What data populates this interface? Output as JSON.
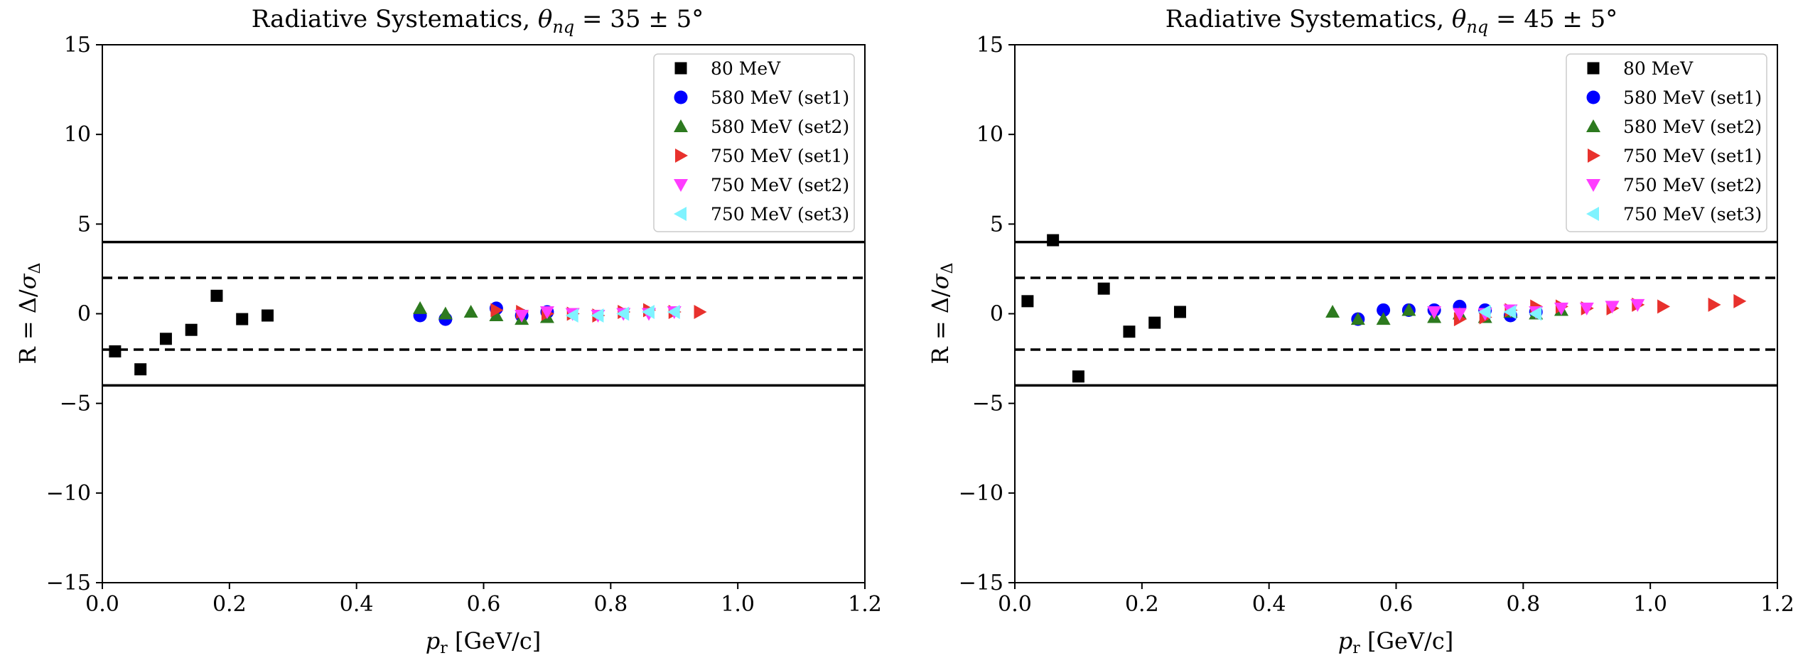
{
  "chart_data": [
    {
      "type": "scatter",
      "title": "Radiative Systematics, θnq = 35 ± 5°",
      "xlabel": "pr [GeV/c]",
      "ylabel": "R = Δ/σΔ",
      "xlim": [
        0.0,
        1.2
      ],
      "ylim": [
        -15,
        15
      ],
      "xticks": [
        "0.0",
        "0.2",
        "0.4",
        "0.6",
        "0.8",
        "1.0",
        "1.2"
      ],
      "yticks": [
        "−15",
        "−10",
        "−5",
        "0",
        "5",
        "10",
        "15"
      ],
      "grid": false,
      "legend_position": "top-right",
      "hlines": [
        {
          "y": 4,
          "style": "solid"
        },
        {
          "y": -4,
          "style": "solid"
        },
        {
          "y": 2,
          "style": "dashed"
        },
        {
          "y": -2,
          "style": "dashed"
        }
      ],
      "series": [
        {
          "name": "80 MeV",
          "marker": "square",
          "color": "#000000",
          "x": [
            0.02,
            0.06,
            0.1,
            0.14,
            0.18,
            0.22,
            0.26
          ],
          "y": [
            -2.1,
            -3.1,
            -1.4,
            -0.9,
            1.0,
            -0.3,
            -0.1
          ]
        },
        {
          "name": "580 MeV (set1)",
          "marker": "circle",
          "color": "#0000ff",
          "x": [
            0.5,
            0.54,
            0.62,
            0.66,
            0.7
          ],
          "y": [
            -0.1,
            -0.3,
            0.3,
            -0.1,
            0.1
          ]
        },
        {
          "name": "580 MeV (set2)",
          "marker": "triangle-up",
          "color": "#2d7a1f",
          "x": [
            0.5,
            0.54,
            0.58,
            0.62,
            0.66,
            0.7
          ],
          "y": [
            0.3,
            0.0,
            0.1,
            -0.1,
            -0.3,
            -0.2
          ]
        },
        {
          "name": "750 MeV (set1)",
          "marker": "triangle-right",
          "color": "#e8312d",
          "x": [
            0.62,
            0.66,
            0.7,
            0.74,
            0.78,
            0.82,
            0.86,
            0.9,
            0.94
          ],
          "y": [
            0.2,
            0.1,
            0.0,
            0.0,
            -0.1,
            0.1,
            0.2,
            0.1,
            0.1
          ]
        },
        {
          "name": "750 MeV (set2)",
          "marker": "triangle-down",
          "color": "#ff3cff",
          "x": [
            0.66,
            0.7,
            0.74,
            0.78,
            0.82,
            0.86,
            0.9
          ],
          "y": [
            -0.1,
            0.1,
            0.0,
            -0.1,
            0.0,
            0.0,
            0.1
          ]
        },
        {
          "name": "750 MeV (set3)",
          "marker": "triangle-left",
          "color": "#7ff3ff",
          "x": [
            0.74,
            0.78,
            0.82,
            0.86,
            0.9
          ],
          "y": [
            -0.1,
            -0.1,
            0.0,
            0.1,
            0.1
          ]
        }
      ]
    },
    {
      "type": "scatter",
      "title": "Radiative Systematics, θnq = 45 ± 5°",
      "xlabel": "pr [GeV/c]",
      "ylabel": "R = Δ/σΔ",
      "xlim": [
        0.0,
        1.2
      ],
      "ylim": [
        -15,
        15
      ],
      "xticks": [
        "0.0",
        "0.2",
        "0.4",
        "0.6",
        "0.8",
        "1.0",
        "1.2"
      ],
      "yticks": [
        "−15",
        "−10",
        "−5",
        "0",
        "5",
        "10",
        "15"
      ],
      "grid": false,
      "legend_position": "top-right",
      "hlines": [
        {
          "y": 4,
          "style": "solid"
        },
        {
          "y": -4,
          "style": "solid"
        },
        {
          "y": 2,
          "style": "dashed"
        },
        {
          "y": -2,
          "style": "dashed"
        }
      ],
      "series": [
        {
          "name": "80 MeV",
          "marker": "square",
          "color": "#000000",
          "x": [
            0.02,
            0.06,
            0.1,
            0.14,
            0.18,
            0.22,
            0.26
          ],
          "y": [
            0.7,
            4.1,
            -3.5,
            1.4,
            -1.0,
            -0.5,
            0.1
          ]
        },
        {
          "name": "580 MeV (set1)",
          "marker": "circle",
          "color": "#0000ff",
          "x": [
            0.54,
            0.58,
            0.62,
            0.66,
            0.7,
            0.74,
            0.78,
            0.82
          ],
          "y": [
            -0.3,
            0.2,
            0.2,
            0.2,
            0.4,
            0.2,
            -0.1,
            0.1
          ]
        },
        {
          "name": "580 MeV (set2)",
          "marker": "triangle-up",
          "color": "#2d7a1f",
          "x": [
            0.5,
            0.54,
            0.58,
            0.62,
            0.66,
            0.7,
            0.74,
            0.78,
            0.82,
            0.86
          ],
          "y": [
            0.1,
            -0.3,
            -0.3,
            0.2,
            -0.2,
            0.0,
            -0.2,
            0.1,
            0.0,
            0.2
          ]
        },
        {
          "name": "750 MeV (set1)",
          "marker": "triangle-right",
          "color": "#e8312d",
          "x": [
            0.7,
            0.74,
            0.78,
            0.82,
            0.86,
            0.9,
            0.94,
            0.98,
            1.02,
            1.1,
            1.14
          ],
          "y": [
            -0.3,
            -0.2,
            0.2,
            0.4,
            0.4,
            0.3,
            0.3,
            0.5,
            0.4,
            0.5,
            0.7
          ]
        },
        {
          "name": "750 MeV (set2)",
          "marker": "triangle-down",
          "color": "#ff3cff",
          "x": [
            0.66,
            0.7,
            0.74,
            0.78,
            0.82,
            0.86,
            0.9,
            0.94,
            0.98
          ],
          "y": [
            0.1,
            0.0,
            0.0,
            0.2,
            0.1,
            0.3,
            0.3,
            0.4,
            0.5
          ]
        },
        {
          "name": "750 MeV (set3)",
          "marker": "triangle-left",
          "color": "#7ff3ff",
          "x": [
            0.74,
            0.78,
            0.82
          ],
          "y": [
            0.1,
            0.1,
            0.0
          ]
        }
      ]
    }
  ]
}
